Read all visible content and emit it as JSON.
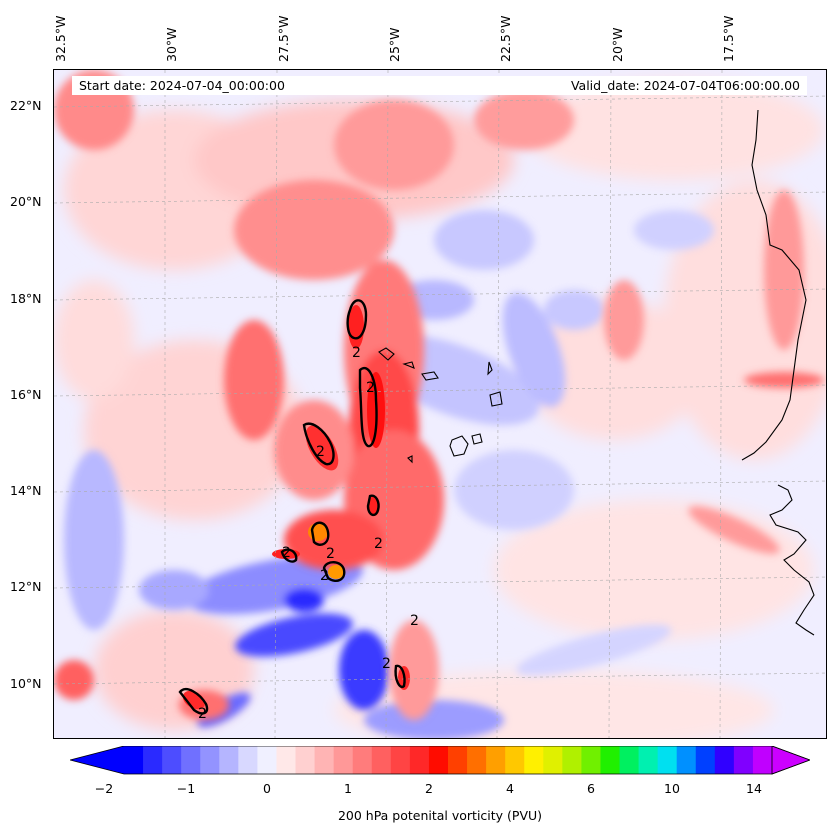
{
  "map": {
    "start_date": "Start date: 2024-07-04_00:00:00",
    "valid_date": "Valid_date: 2024-07-04T06:00:00.00",
    "lon_labels": [
      "32.5°W",
      "30°W",
      "27.5°W",
      "25°W",
      "22.5°W",
      "20°W",
      "17.5°W"
    ],
    "lat_labels": [
      "22°N",
      "20°N",
      "18°N",
      "16°N",
      "14°N",
      "12°N",
      "10°N"
    ],
    "contour_label": "2",
    "contour_level": 2
  },
  "colorbar": {
    "label": "200 hPa potenital vorticity (PVU)",
    "ticks": [
      "−2",
      "−1",
      "0",
      "1",
      "2",
      "4",
      "6",
      "10",
      "14"
    ],
    "colors": [
      "#0000ff",
      "#2a2aff",
      "#4d4dff",
      "#7070ff",
      "#9393ff",
      "#b5b5ff",
      "#d8d8ff",
      "#f0f0ff",
      "#ffe8e8",
      "#ffd0d0",
      "#ffb4b4",
      "#ff9898",
      "#ff7c7c",
      "#ff6060",
      "#ff4444",
      "#ff2828",
      "#ff0c00",
      "#ff4000",
      "#ff6f00",
      "#ff9f00",
      "#ffc800",
      "#fff000",
      "#e0f000",
      "#b0f000",
      "#70f000",
      "#20f000",
      "#00f060",
      "#00f0b0",
      "#00e0f0",
      "#0090ff",
      "#0040ff",
      "#3000ff",
      "#8000ff",
      "#c000ff"
    ],
    "extend_colors": {
      "low": "#0000ff",
      "high": "#cc00ff"
    }
  }
}
